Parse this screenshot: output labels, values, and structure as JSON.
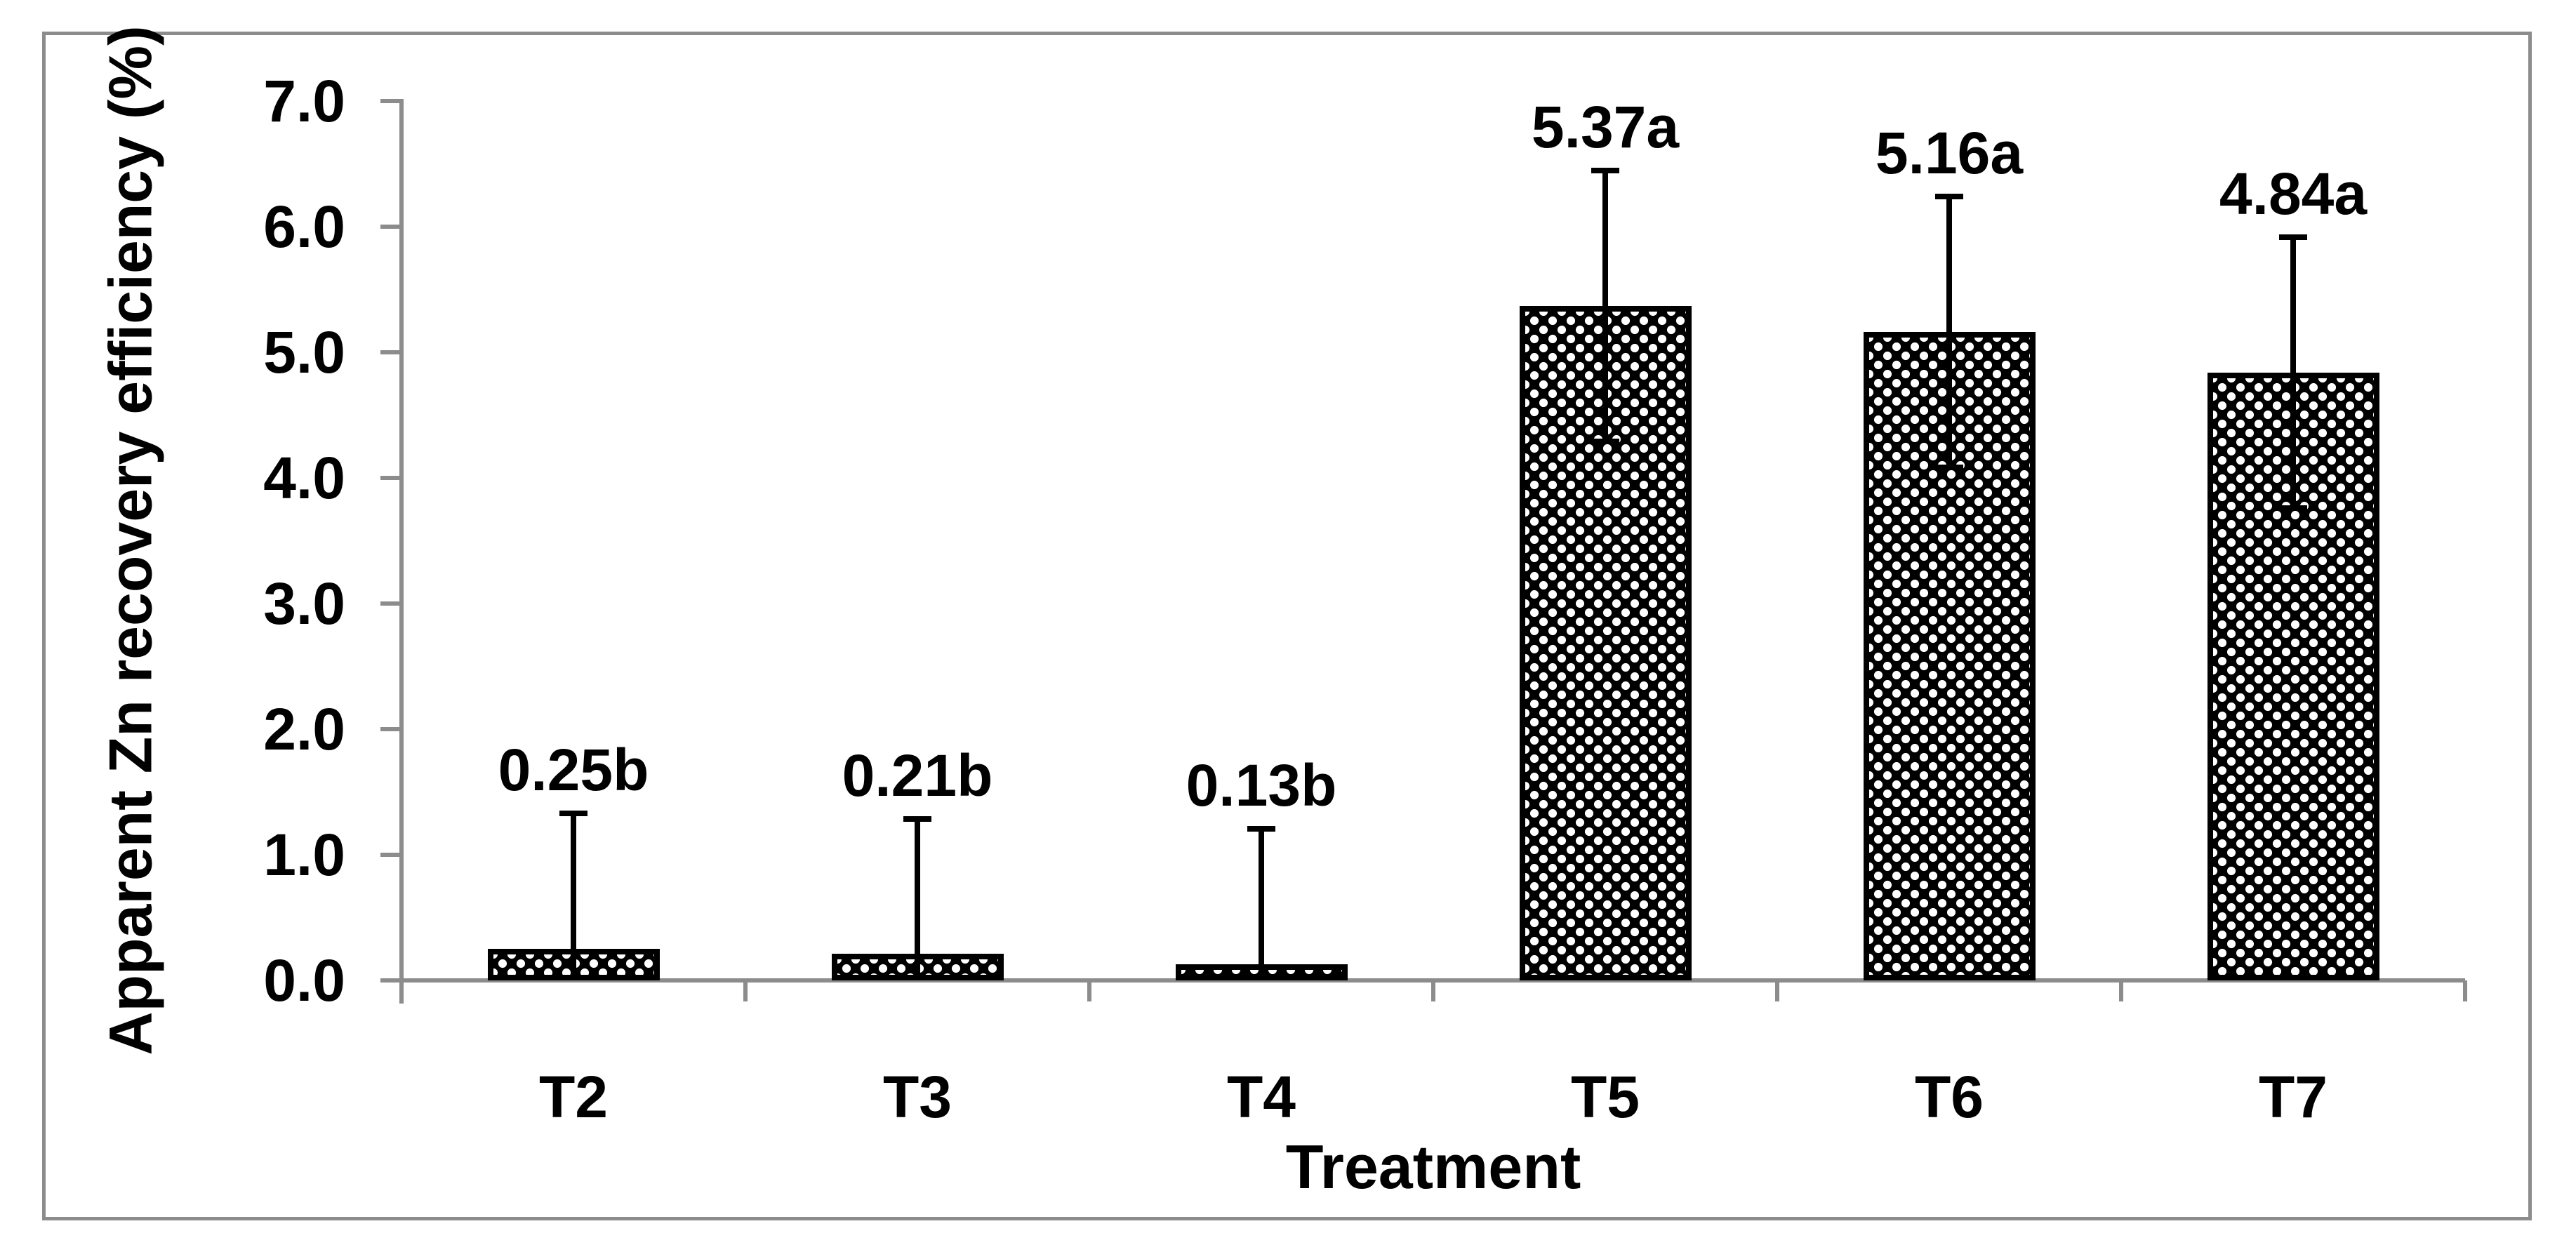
{
  "chart_data": {
    "type": "bar",
    "title": "",
    "xlabel": "Treatment",
    "ylabel": "Apparent Zn recovery efficiency (%)",
    "categories": [
      "T2",
      "T3",
      "T4",
      "T5",
      "T6",
      "T7"
    ],
    "values": [
      0.25,
      0.21,
      0.13,
      5.37,
      5.16,
      4.84
    ],
    "bar_labels": [
      "0.25b",
      "0.21b",
      "0.13b",
      "5.37a",
      "5.16a",
      "4.84a"
    ],
    "error_bars": {
      "type": "symmetric",
      "value": 1.1,
      "per_bar": [
        1.1,
        1.1,
        1.1,
        1.1,
        1.1,
        1.1
      ]
    },
    "ylim": [
      0.0,
      7.0
    ],
    "ytick_labels": [
      "0.0",
      "1.0",
      "2.0",
      "3.0",
      "4.0",
      "5.0",
      "6.0",
      "7.0"
    ],
    "ytick_values": [
      0,
      1,
      2,
      3,
      4,
      5,
      6,
      7
    ],
    "grid": false,
    "legend": null,
    "bar_fill_pattern": "white-dotted-diamond-on-black",
    "colors": {
      "axis": "#8c8c8c",
      "frame": "#8c8c8c",
      "bar_border": "#000000",
      "bar_pattern_bg": "#000000",
      "bar_pattern_dot": "#ffffff",
      "text": "#000000",
      "background": "#ffffff"
    }
  }
}
